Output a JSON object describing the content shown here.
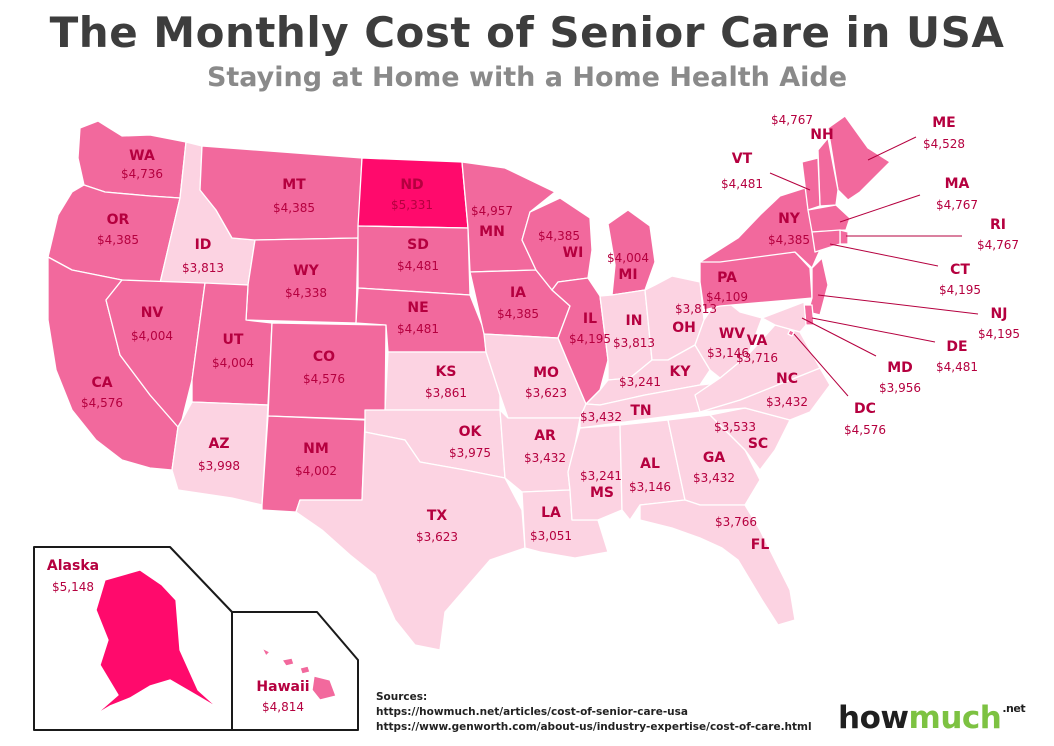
{
  "title": "The Monthly Cost of Senior Care in USA",
  "subtitle": "Staying at Home with a Home Health Aide",
  "colors": {
    "high": "#f2699d",
    "low": "#fcd3e2",
    "max": "#ff0a6c",
    "label": "#b5003f",
    "border": "#ffffff"
  },
  "states": [
    {
      "abbr": "WA",
      "value": "$4,736"
    },
    {
      "abbr": "OR",
      "value": "$4,385"
    },
    {
      "abbr": "CA",
      "value": "$4,576"
    },
    {
      "abbr": "ID",
      "value": "$3,813"
    },
    {
      "abbr": "NV",
      "value": "$4,004"
    },
    {
      "abbr": "MT",
      "value": "$4,385"
    },
    {
      "abbr": "WY",
      "value": "$4,338"
    },
    {
      "abbr": "UT",
      "value": "$4,004"
    },
    {
      "abbr": "AZ",
      "value": "$3,998"
    },
    {
      "abbr": "CO",
      "value": "$4,576"
    },
    {
      "abbr": "NM",
      "value": "$4,002"
    },
    {
      "abbr": "ND",
      "value": "$5,331"
    },
    {
      "abbr": "SD",
      "value": "$4,481"
    },
    {
      "abbr": "NE",
      "value": "$4,481"
    },
    {
      "abbr": "KS",
      "value": "$3,861"
    },
    {
      "abbr": "OK",
      "value": "$3,975"
    },
    {
      "abbr": "TX",
      "value": "$3,623"
    },
    {
      "abbr": "MN",
      "value": "$4,957"
    },
    {
      "abbr": "IA",
      "value": "$4,385"
    },
    {
      "abbr": "MO",
      "value": "$3,623"
    },
    {
      "abbr": "AR",
      "value": "$3,432"
    },
    {
      "abbr": "LA",
      "value": "$3,051"
    },
    {
      "abbr": "WI",
      "value": "$4,385"
    },
    {
      "abbr": "IL",
      "value": "$4,195"
    },
    {
      "abbr": "MI",
      "value": "$4,004"
    },
    {
      "abbr": "IN",
      "value": "$3,813"
    },
    {
      "abbr": "OH",
      "value": "$3,813"
    },
    {
      "abbr": "KY",
      "value": "$3,241"
    },
    {
      "abbr": "TN",
      "value": "$3,432"
    },
    {
      "abbr": "MS",
      "value": "$3,241"
    },
    {
      "abbr": "AL",
      "value": "$3,146"
    },
    {
      "abbr": "GA",
      "value": "$3,432"
    },
    {
      "abbr": "FL",
      "value": "$3,766"
    },
    {
      "abbr": "SC",
      "value": "$3,533"
    },
    {
      "abbr": "NC",
      "value": "$3,432"
    },
    {
      "abbr": "VA",
      "value": "$3,716"
    },
    {
      "abbr": "WV",
      "value": "$3,146"
    },
    {
      "abbr": "PA",
      "value": "$4,109"
    },
    {
      "abbr": "NY",
      "value": "$4,385"
    },
    {
      "abbr": "ME",
      "value": "$4,528"
    },
    {
      "abbr": "NH",
      "value": "$4,767"
    },
    {
      "abbr": "VT",
      "value": "$4,481"
    },
    {
      "abbr": "MA",
      "value": "$4,767"
    },
    {
      "abbr": "RI",
      "value": "$4,767"
    },
    {
      "abbr": "CT",
      "value": "$4,195"
    },
    {
      "abbr": "NJ",
      "value": "$4,195"
    },
    {
      "abbr": "DE",
      "value": "$4,481"
    },
    {
      "abbr": "MD",
      "value": "$3,956"
    },
    {
      "abbr": "DC",
      "value": "$4,576"
    },
    {
      "abbr": "Alaska",
      "value": "$5,148"
    },
    {
      "abbr": "Hawaii",
      "value": "$4,814"
    }
  ],
  "sources": {
    "heading": "Sources:",
    "lines": [
      "https://howmuch.net/articles/cost-of-senior-care-usa",
      "https://www.genworth.com/about-us/industry-expertise/cost-of-care.html"
    ]
  },
  "logo": {
    "part1": "how",
    "part2": "much",
    "suffix": ".net"
  }
}
